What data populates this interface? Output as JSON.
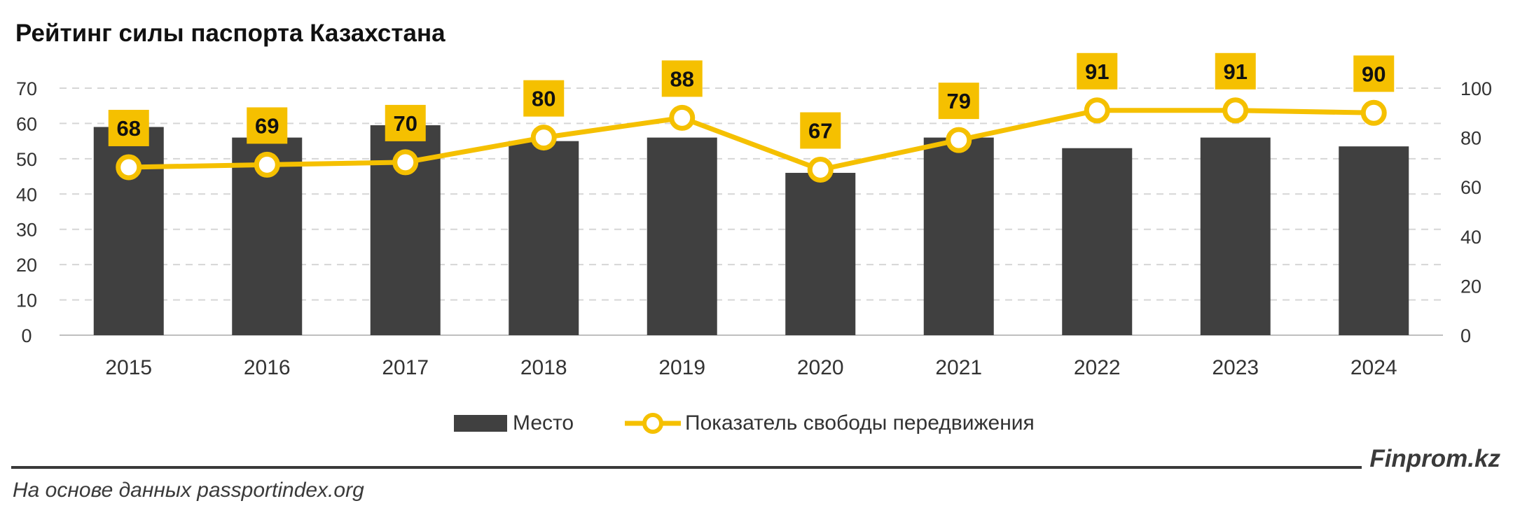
{
  "chart_data": {
    "type": "bar",
    "title": "Рейтинг силы паспорта Казахстана",
    "categories": [
      "2015",
      "2016",
      "2017",
      "2018",
      "2019",
      "2020",
      "2021",
      "2022",
      "2023",
      "2024"
    ],
    "series": [
      {
        "name": "Место",
        "type": "bar",
        "axis": "left",
        "color": "#404040",
        "values": [
          59,
          56,
          59.5,
          55,
          56,
          46,
          56,
          53,
          56,
          53.5
        ]
      },
      {
        "name": "Показатель свободы передвижения",
        "type": "line",
        "axis": "right",
        "color": "#f5c000",
        "values": [
          68,
          69,
          70,
          80,
          88,
          67,
          79,
          91,
          91,
          90
        ]
      }
    ],
    "y_left": {
      "min": 0,
      "max": 70,
      "ticks": [
        0,
        10,
        20,
        30,
        40,
        50,
        60,
        70
      ]
    },
    "y_right": {
      "min": 0,
      "max": 100,
      "ticks": [
        0,
        20,
        40,
        60,
        80,
        100
      ]
    },
    "grid": true,
    "legend_position": "bottom"
  },
  "footer": {
    "brand": "Finprom.kz",
    "source": "На основе данных passportindex.org"
  }
}
